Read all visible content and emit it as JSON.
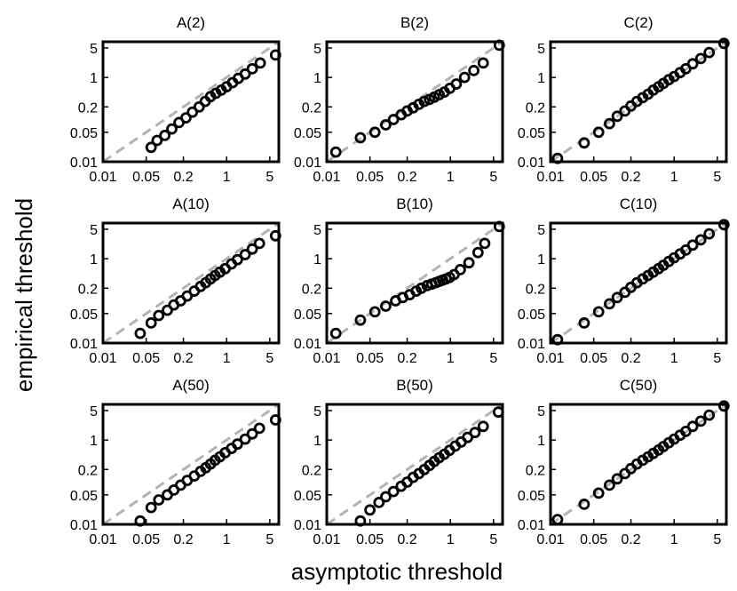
{
  "figure": {
    "xlabel": "asymptotic threshold",
    "ylabel": "empirical threshold"
  },
  "chart_data": [
    {
      "type": "scatter",
      "title": "A(2)",
      "scale": "log",
      "xlim": [
        0.01,
        7
      ],
      "ylim": [
        0.01,
        7
      ],
      "xticks": [
        "0.01",
        "0.05",
        "0.2",
        "1",
        "5"
      ],
      "yticks": [
        "0.01",
        "0.05",
        "0.2",
        "1",
        "5"
      ],
      "reference_line": "y = x (dashed gray)",
      "points": [
        [
          0.06,
          0.022
        ],
        [
          0.075,
          0.032
        ],
        [
          0.1,
          0.042
        ],
        [
          0.13,
          0.06
        ],
        [
          0.17,
          0.085
        ],
        [
          0.22,
          0.11
        ],
        [
          0.28,
          0.15
        ],
        [
          0.36,
          0.2
        ],
        [
          0.45,
          0.27
        ],
        [
          0.55,
          0.35
        ],
        [
          0.67,
          0.42
        ],
        [
          0.82,
          0.5
        ],
        [
          1.0,
          0.6
        ],
        [
          1.25,
          0.75
        ],
        [
          1.55,
          0.95
        ],
        [
          2.0,
          1.2
        ],
        [
          2.6,
          1.6
        ],
        [
          3.5,
          2.2
        ],
        [
          6.2,
          3.4
        ]
      ]
    },
    {
      "type": "scatter",
      "title": "B(2)",
      "scale": "log",
      "xlim": [
        0.01,
        7
      ],
      "ylim": [
        0.01,
        7
      ],
      "xticks": [
        "0.01",
        "0.05",
        "0.2",
        "1",
        "5"
      ],
      "yticks": [
        "0.01",
        "0.05",
        "0.2",
        "1",
        "5"
      ],
      "reference_line": "y = x (dashed gray)",
      "points": [
        [
          0.014,
          0.017
        ],
        [
          0.035,
          0.037
        ],
        [
          0.06,
          0.05
        ],
        [
          0.09,
          0.075
        ],
        [
          0.12,
          0.1
        ],
        [
          0.16,
          0.13
        ],
        [
          0.2,
          0.16
        ],
        [
          0.25,
          0.19
        ],
        [
          0.31,
          0.23
        ],
        [
          0.38,
          0.27
        ],
        [
          0.46,
          0.3
        ],
        [
          0.55,
          0.34
        ],
        [
          0.66,
          0.39
        ],
        [
          0.8,
          0.45
        ],
        [
          0.98,
          0.55
        ],
        [
          1.25,
          0.7
        ],
        [
          1.7,
          1.0
        ],
        [
          2.4,
          1.45
        ],
        [
          3.4,
          2.2
        ],
        [
          6.2,
          5.8
        ]
      ]
    },
    {
      "type": "scatter",
      "title": "C(2)",
      "scale": "log",
      "xlim": [
        0.01,
        7
      ],
      "ylim": [
        0.01,
        7
      ],
      "xticks": [
        "0.01",
        "0.05",
        "0.2",
        "1",
        "5"
      ],
      "yticks": [
        "0.01",
        "0.05",
        "0.2",
        "1",
        "5"
      ],
      "reference_line": "y = x (dashed gray)",
      "points": [
        [
          0.013,
          0.012
        ],
        [
          0.035,
          0.028
        ],
        [
          0.06,
          0.05
        ],
        [
          0.09,
          0.08
        ],
        [
          0.12,
          0.12
        ],
        [
          0.16,
          0.16
        ],
        [
          0.2,
          0.21
        ],
        [
          0.25,
          0.27
        ],
        [
          0.31,
          0.33
        ],
        [
          0.38,
          0.4
        ],
        [
          0.46,
          0.5
        ],
        [
          0.56,
          0.6
        ],
        [
          0.67,
          0.72
        ],
        [
          0.82,
          0.88
        ],
        [
          1.0,
          1.05
        ],
        [
          1.25,
          1.3
        ],
        [
          1.55,
          1.6
        ],
        [
          2.0,
          2.1
        ],
        [
          2.7,
          2.8
        ],
        [
          3.7,
          3.9
        ],
        [
          6.4,
          6.4
        ]
      ]
    },
    {
      "type": "scatter",
      "title": "A(10)",
      "scale": "log",
      "xlim": [
        0.01,
        7
      ],
      "ylim": [
        0.01,
        7
      ],
      "xticks": [
        "0.01",
        "0.05",
        "0.2",
        "1",
        "5"
      ],
      "yticks": [
        "0.01",
        "0.05",
        "0.2",
        "1",
        "5"
      ],
      "reference_line": "y = x (dashed gray)",
      "points": [
        [
          0.04,
          0.017
        ],
        [
          0.06,
          0.03
        ],
        [
          0.08,
          0.045
        ],
        [
          0.11,
          0.06
        ],
        [
          0.14,
          0.08
        ],
        [
          0.18,
          0.1
        ],
        [
          0.23,
          0.13
        ],
        [
          0.3,
          0.17
        ],
        [
          0.38,
          0.22
        ],
        [
          0.46,
          0.27
        ],
        [
          0.55,
          0.33
        ],
        [
          0.65,
          0.4
        ],
        [
          0.78,
          0.48
        ],
        [
          0.95,
          0.58
        ],
        [
          1.2,
          0.75
        ],
        [
          1.5,
          0.95
        ],
        [
          2.0,
          1.25
        ],
        [
          2.6,
          1.7
        ],
        [
          3.4,
          2.3
        ],
        [
          6.2,
          3.5
        ]
      ]
    },
    {
      "type": "scatter",
      "title": "B(10)",
      "scale": "log",
      "xlim": [
        0.01,
        7
      ],
      "ylim": [
        0.01,
        7
      ],
      "xticks": [
        "0.01",
        "0.05",
        "0.2",
        "1",
        "5"
      ],
      "yticks": [
        "0.01",
        "0.05",
        "0.2",
        "1",
        "5"
      ],
      "reference_line": "y = x (dashed gray)",
      "points": [
        [
          0.014,
          0.017
        ],
        [
          0.035,
          0.035
        ],
        [
          0.06,
          0.055
        ],
        [
          0.09,
          0.075
        ],
        [
          0.13,
          0.1
        ],
        [
          0.17,
          0.12
        ],
        [
          0.22,
          0.14
        ],
        [
          0.28,
          0.17
        ],
        [
          0.34,
          0.2
        ],
        [
          0.42,
          0.23
        ],
        [
          0.5,
          0.25
        ],
        [
          0.58,
          0.27
        ],
        [
          0.66,
          0.29
        ],
        [
          0.75,
          0.31
        ],
        [
          0.85,
          0.33
        ],
        [
          0.97,
          0.36
        ],
        [
          1.15,
          0.42
        ],
        [
          1.45,
          0.55
        ],
        [
          2.0,
          0.8
        ],
        [
          2.8,
          1.4
        ],
        [
          3.6,
          2.3
        ],
        [
          6.2,
          5.8
        ]
      ]
    },
    {
      "type": "scatter",
      "title": "C(10)",
      "scale": "log",
      "xlim": [
        0.01,
        7
      ],
      "ylim": [
        0.01,
        7
      ],
      "xticks": [
        "0.01",
        "0.05",
        "0.2",
        "1",
        "5"
      ],
      "yticks": [
        "0.01",
        "0.05",
        "0.2",
        "1",
        "5"
      ],
      "reference_line": "y = x (dashed gray)",
      "points": [
        [
          0.013,
          0.012
        ],
        [
          0.035,
          0.03
        ],
        [
          0.06,
          0.055
        ],
        [
          0.09,
          0.085
        ],
        [
          0.12,
          0.12
        ],
        [
          0.16,
          0.16
        ],
        [
          0.2,
          0.21
        ],
        [
          0.25,
          0.27
        ],
        [
          0.31,
          0.33
        ],
        [
          0.38,
          0.4
        ],
        [
          0.46,
          0.48
        ],
        [
          0.56,
          0.58
        ],
        [
          0.67,
          0.7
        ],
        [
          0.82,
          0.86
        ],
        [
          1.0,
          1.05
        ],
        [
          1.25,
          1.3
        ],
        [
          1.55,
          1.6
        ],
        [
          2.0,
          2.1
        ],
        [
          2.7,
          2.8
        ],
        [
          3.7,
          3.9
        ],
        [
          6.4,
          6.4
        ]
      ]
    },
    {
      "type": "scatter",
      "title": "A(50)",
      "scale": "log",
      "xlim": [
        0.01,
        7
      ],
      "ylim": [
        0.01,
        7
      ],
      "xticks": [
        "0.01",
        "0.05",
        "0.2",
        "1",
        "5"
      ],
      "yticks": [
        "0.01",
        "0.05",
        "0.2",
        "1",
        "5"
      ],
      "reference_line": "y = x (dashed gray)",
      "points": [
        [
          0.04,
          0.012
        ],
        [
          0.06,
          0.025
        ],
        [
          0.08,
          0.038
        ],
        [
          0.11,
          0.05
        ],
        [
          0.14,
          0.065
        ],
        [
          0.18,
          0.085
        ],
        [
          0.23,
          0.11
        ],
        [
          0.3,
          0.14
        ],
        [
          0.38,
          0.18
        ],
        [
          0.46,
          0.22
        ],
        [
          0.55,
          0.27
        ],
        [
          0.65,
          0.33
        ],
        [
          0.78,
          0.4
        ],
        [
          0.95,
          0.5
        ],
        [
          1.2,
          0.63
        ],
        [
          1.5,
          0.8
        ],
        [
          2.0,
          1.05
        ],
        [
          2.6,
          1.4
        ],
        [
          3.4,
          1.9
        ],
        [
          6.2,
          3.0
        ]
      ]
    },
    {
      "type": "scatter",
      "title": "B(50)",
      "scale": "log",
      "xlim": [
        0.01,
        7
      ],
      "ylim": [
        0.01,
        7
      ],
      "xticks": [
        "0.01",
        "0.05",
        "0.2",
        "1",
        "5"
      ],
      "yticks": [
        "0.01",
        "0.05",
        "0.2",
        "1",
        "5"
      ],
      "reference_line": "y = x (dashed gray)",
      "points": [
        [
          0.035,
          0.012
        ],
        [
          0.05,
          0.022
        ],
        [
          0.07,
          0.033
        ],
        [
          0.09,
          0.045
        ],
        [
          0.12,
          0.06
        ],
        [
          0.16,
          0.08
        ],
        [
          0.2,
          0.1
        ],
        [
          0.25,
          0.13
        ],
        [
          0.31,
          0.16
        ],
        [
          0.38,
          0.2
        ],
        [
          0.46,
          0.25
        ],
        [
          0.55,
          0.31
        ],
        [
          0.66,
          0.38
        ],
        [
          0.8,
          0.46
        ],
        [
          0.97,
          0.57
        ],
        [
          1.2,
          0.72
        ],
        [
          1.5,
          0.9
        ],
        [
          1.9,
          1.15
        ],
        [
          2.5,
          1.5
        ],
        [
          3.4,
          2.1
        ],
        [
          6.0,
          4.6
        ]
      ]
    },
    {
      "type": "scatter",
      "title": "C(50)",
      "scale": "log",
      "xlim": [
        0.01,
        7
      ],
      "ylim": [
        0.01,
        7
      ],
      "xticks": [
        "0.01",
        "0.05",
        "0.2",
        "1",
        "5"
      ],
      "yticks": [
        "0.01",
        "0.05",
        "0.2",
        "1",
        "5"
      ],
      "reference_line": "y = x (dashed gray)",
      "points": [
        [
          0.013,
          0.013
        ],
        [
          0.035,
          0.03
        ],
        [
          0.06,
          0.055
        ],
        [
          0.09,
          0.085
        ],
        [
          0.12,
          0.12
        ],
        [
          0.16,
          0.16
        ],
        [
          0.2,
          0.21
        ],
        [
          0.25,
          0.27
        ],
        [
          0.31,
          0.33
        ],
        [
          0.38,
          0.4
        ],
        [
          0.46,
          0.48
        ],
        [
          0.56,
          0.58
        ],
        [
          0.67,
          0.7
        ],
        [
          0.82,
          0.86
        ],
        [
          1.0,
          1.05
        ],
        [
          1.25,
          1.3
        ],
        [
          1.55,
          1.6
        ],
        [
          2.0,
          2.1
        ],
        [
          2.7,
          2.8
        ],
        [
          3.7,
          3.9
        ],
        [
          6.4,
          6.4
        ]
      ]
    }
  ]
}
